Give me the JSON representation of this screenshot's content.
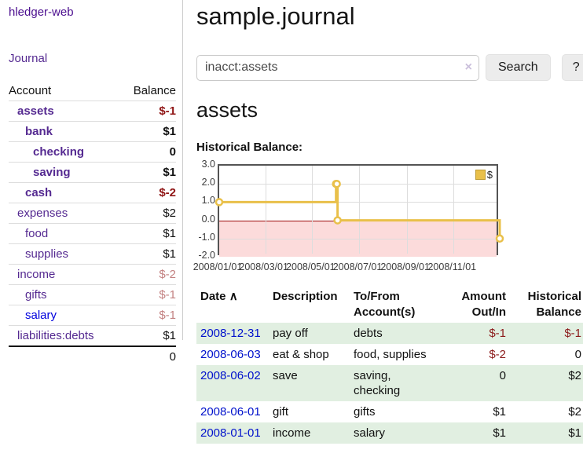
{
  "sidebar": {
    "app_title": "hledger-web",
    "journal_link": "Journal",
    "accounts_table": {
      "headers": {
        "account": "Account",
        "balance": "Balance"
      },
      "rows": [
        {
          "name": "assets",
          "balance": "$-1"
        },
        {
          "name": "bank",
          "balance": "$1"
        },
        {
          "name": "checking",
          "balance": "0"
        },
        {
          "name": "saving",
          "balance": "$1"
        },
        {
          "name": "cash",
          "balance": "$-2"
        },
        {
          "name": "expenses",
          "balance": "$2"
        },
        {
          "name": "food",
          "balance": "$1"
        },
        {
          "name": "supplies",
          "balance": "$1"
        },
        {
          "name": "income",
          "balance": "$-2"
        },
        {
          "name": "gifts",
          "balance": "$-1"
        },
        {
          "name": "salary",
          "balance": "$-1"
        },
        {
          "name": "liabilities:debts",
          "balance": "$1"
        }
      ],
      "total": "0"
    }
  },
  "header": {
    "title": "sample.journal"
  },
  "search": {
    "value": "inacct:assets",
    "clear_icon": "×",
    "button_label": "Search",
    "help_label": "?"
  },
  "account_page": {
    "heading": "assets",
    "chart_label": "Historical Balance:"
  },
  "chart_data": {
    "type": "line",
    "step": true,
    "title": "Historical Balance",
    "series": [
      {
        "name": "$",
        "color": "#e9c04a",
        "points": [
          [
            "2008-01-01",
            1
          ],
          [
            "2008-06-01",
            2
          ],
          [
            "2008-06-02",
            2
          ],
          [
            "2008-06-03",
            0
          ],
          [
            "2008-12-31",
            -1
          ]
        ]
      }
    ],
    "x_range": [
      "2008-01-01",
      "2008-12-31"
    ],
    "ylim": [
      -2,
      3
    ],
    "yticks": [
      3,
      2,
      1,
      0,
      -1,
      -2
    ],
    "ytick_labels": [
      "3.0",
      "2.0",
      "1.0",
      "0.0",
      "-1.0",
      "-2.0"
    ],
    "xticks": [
      "2008-01-01",
      "2008-03-01",
      "2008-05-01",
      "2008-07-01",
      "2008-09-01",
      "2008-11-01"
    ],
    "xtick_labels": [
      "2008/01/01",
      "2008/03/01",
      "2008/05/01",
      "2008/07/01",
      "2008/09/01",
      "2008/11/01"
    ],
    "legend": {
      "label": "$",
      "position": "top-right"
    },
    "grid": true,
    "negative_region_color": "#fcdbdb",
    "zero_line_color": "#9c0b0b",
    "marker": {
      "fill": "#ffffff",
      "radius": 4
    }
  },
  "transactions": {
    "sort_icon": "∧",
    "headers": {
      "date": "Date",
      "description": "Description",
      "accounts": "To/From\nAccount(s)",
      "amount": "Amount\nOut/In",
      "balance": "Historical\nBalance"
    },
    "rows": [
      {
        "date": "2008-12-31",
        "description": "pay off",
        "accounts": "debts",
        "amount": "$-1",
        "balance": "$-1"
      },
      {
        "date": "2008-06-03",
        "description": "eat & shop",
        "accounts": "food, supplies",
        "amount": "$-2",
        "balance": "0"
      },
      {
        "date": "2008-06-02",
        "description": "save",
        "accounts": "saving,\nchecking",
        "amount": "0",
        "balance": "$2"
      },
      {
        "date": "2008-06-01",
        "description": "gift",
        "accounts": "gifts",
        "amount": "$1",
        "balance": "$2"
      },
      {
        "date": "2008-01-01",
        "description": "income",
        "accounts": "salary",
        "amount": "$1",
        "balance": "$1"
      }
    ]
  }
}
